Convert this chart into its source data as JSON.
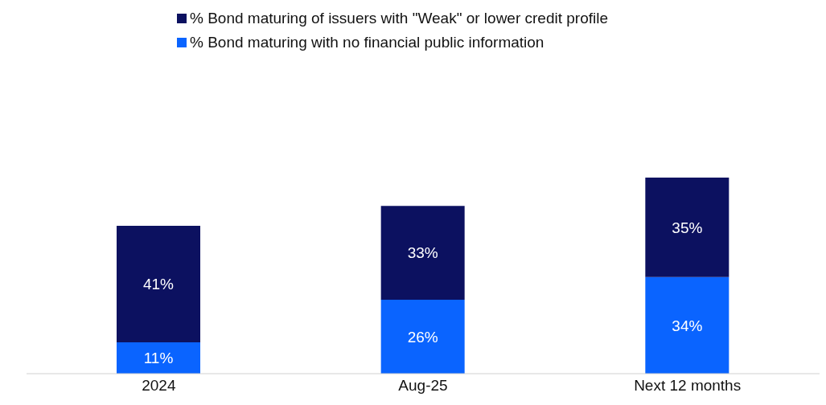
{
  "chart_data": {
    "type": "bar",
    "stacked": true,
    "categories": [
      "2024",
      "Aug-25",
      "Next 12 months"
    ],
    "series": [
      {
        "name": "% Bond maturing with no financial public information",
        "color": "#0a64ff",
        "values": [
          11,
          26,
          34
        ],
        "value_labels": [
          "11%",
          "26%",
          "34%"
        ]
      },
      {
        "name": "% Bond maturing of issuers with \"Weak\" or lower credit profile",
        "color": "#0c1160",
        "values": [
          41,
          33,
          35
        ],
        "value_labels": [
          "41%",
          "33%",
          "35%"
        ]
      }
    ],
    "legend": "top",
    "grid": false
  }
}
